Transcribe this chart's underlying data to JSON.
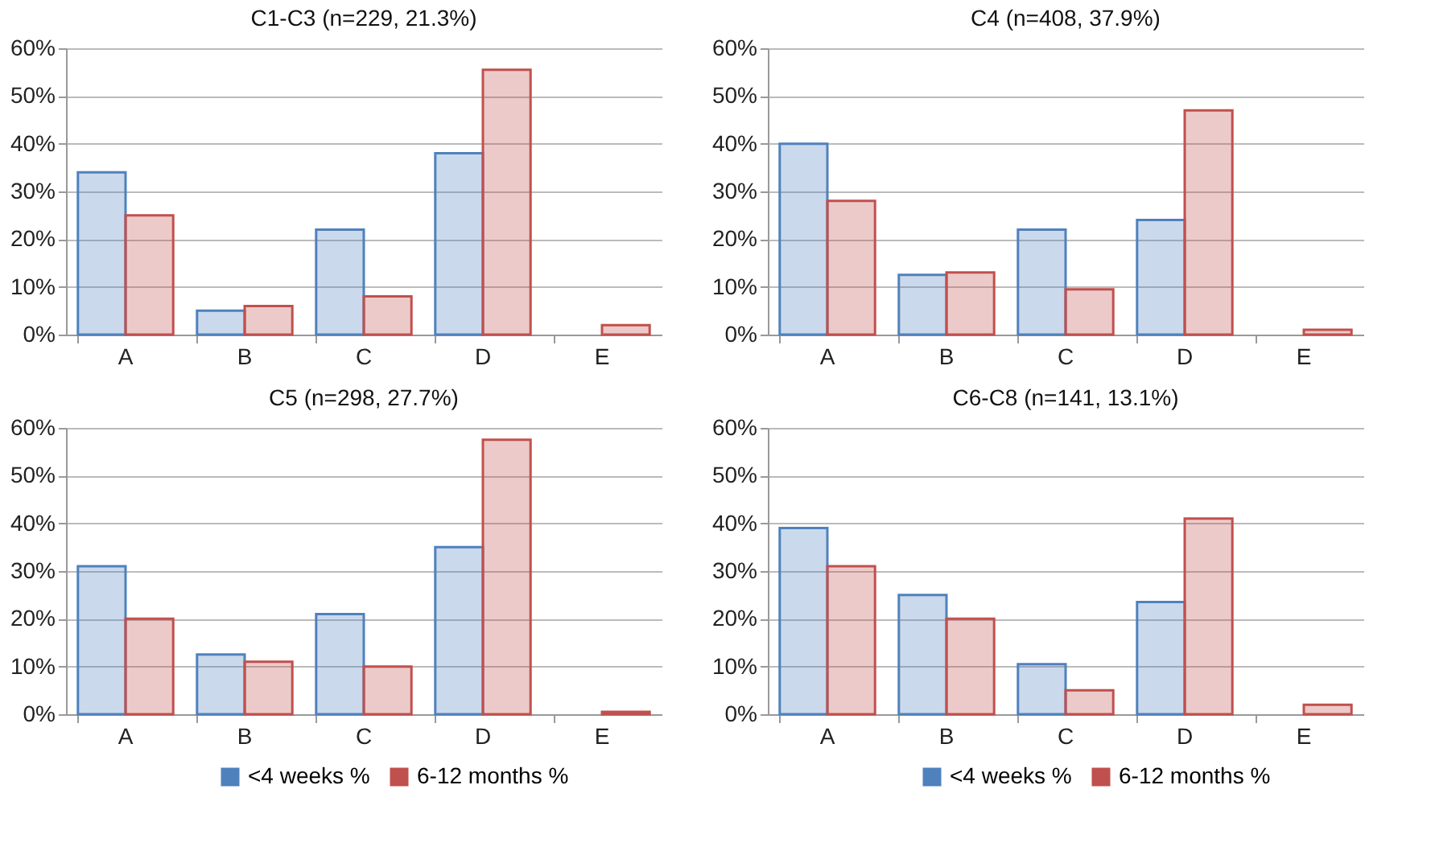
{
  "chart_data": [
    {
      "type": "bar",
      "title": "C1-C3 (n=229, 21.3%)",
      "categories": [
        "A",
        "B",
        "C",
        "D",
        "E"
      ],
      "series": [
        {
          "color": "#4f81bd",
          "values": [
            34,
            5,
            22,
            38,
            null
          ]
        },
        {
          "color": "#c0504d",
          "values": [
            25,
            6,
            8,
            55.5,
            2
          ]
        }
      ],
      "ylim": [
        0,
        60
      ],
      "yticks": [
        {
          "value": 0,
          "label": "0%"
        },
        {
          "value": 10,
          "label": "10%"
        },
        {
          "value": 20,
          "label": "20%"
        },
        {
          "value": 30,
          "label": "30%"
        },
        {
          "value": 40,
          "label": "40%"
        },
        {
          "value": 50,
          "label": "50%"
        },
        {
          "value": 60,
          "label": "60%"
        }
      ],
      "grid": "y",
      "legend": false
    },
    {
      "type": "bar",
      "title": "C4 (n=408, 37.9%)",
      "categories": [
        "A",
        "B",
        "C",
        "D",
        "E"
      ],
      "series": [
        {
          "color": "#4f81bd",
          "values": [
            40,
            12.5,
            22,
            24,
            null
          ]
        },
        {
          "color": "#c0504d",
          "values": [
            28,
            13,
            9.5,
            47,
            1
          ]
        }
      ],
      "ylim": [
        0,
        60
      ],
      "yticks": [
        {
          "value": 0,
          "label": "0%"
        },
        {
          "value": 10,
          "label": "10%"
        },
        {
          "value": 20,
          "label": "20%"
        },
        {
          "value": 30,
          "label": "30%"
        },
        {
          "value": 40,
          "label": "40%"
        },
        {
          "value": 50,
          "label": "50%"
        },
        {
          "value": 60,
          "label": "60%"
        }
      ],
      "grid": "y",
      "legend": false
    },
    {
      "type": "bar",
      "title": "C5 (n=298, 27.7%)",
      "categories": [
        "A",
        "B",
        "C",
        "D",
        "E"
      ],
      "series": [
        {
          "name": "<4 weeks %",
          "color": "#4f81bd",
          "values": [
            31,
            12.5,
            21,
            35,
            null
          ]
        },
        {
          "name": "6-12 months %",
          "color": "#c0504d",
          "values": [
            20,
            11,
            10,
            57.5,
            0.5
          ]
        }
      ],
      "ylim": [
        0,
        60
      ],
      "yticks": [
        {
          "value": 0,
          "label": "0%"
        },
        {
          "value": 10,
          "label": "10%"
        },
        {
          "value": 20,
          "label": "20%"
        },
        {
          "value": 30,
          "label": "30%"
        },
        {
          "value": 40,
          "label": "40%"
        },
        {
          "value": 50,
          "label": "50%"
        },
        {
          "value": 60,
          "label": "60%"
        }
      ],
      "grid": "y",
      "legend": "bottom"
    },
    {
      "type": "bar",
      "title": "C6-C8 (n=141, 13.1%)",
      "categories": [
        "A",
        "B",
        "C",
        "D",
        "E"
      ],
      "series": [
        {
          "name": "<4 weeks %",
          "color": "#4f81bd",
          "values": [
            39,
            25,
            10.5,
            23.5,
            null
          ]
        },
        {
          "name": "6-12 months %",
          "color": "#c0504d",
          "values": [
            31,
            20,
            5,
            41,
            2
          ]
        }
      ],
      "ylim": [
        0,
        60
      ],
      "yticks": [
        {
          "value": 0,
          "label": "0%"
        },
        {
          "value": 10,
          "label": "10%"
        },
        {
          "value": 20,
          "label": "20%"
        },
        {
          "value": 30,
          "label": "30%"
        },
        {
          "value": 40,
          "label": "40%"
        },
        {
          "value": 50,
          "label": "50%"
        },
        {
          "value": 60,
          "label": "60%"
        }
      ],
      "grid": "y",
      "legend": "bottom"
    }
  ]
}
